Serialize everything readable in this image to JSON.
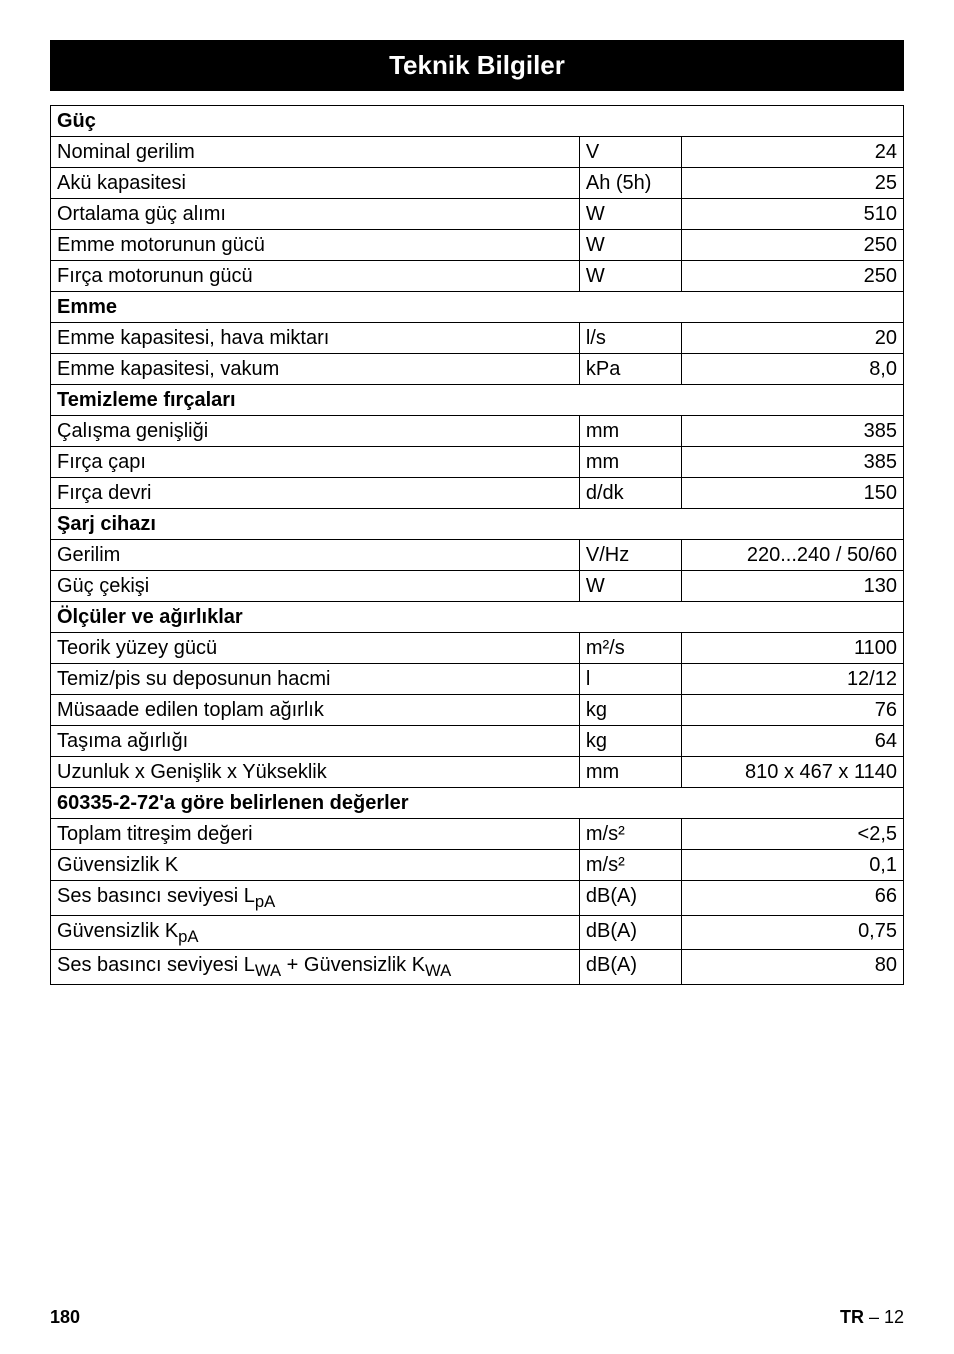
{
  "title": "Teknik Bilgiler",
  "sections": [
    {
      "header": "Güç",
      "rows": [
        {
          "label": "Nominal gerilim",
          "unit": "V",
          "value": "24"
        },
        {
          "label": "Akü kapasitesi",
          "unit": "Ah (5h)",
          "value": "25"
        },
        {
          "label": "Ortalama güç alımı",
          "unit": "W",
          "value": "510"
        },
        {
          "label": "Emme motorunun gücü",
          "unit": "W",
          "value": "250"
        },
        {
          "label": "Fırça motorunun gücü",
          "unit": "W",
          "value": "250"
        }
      ]
    },
    {
      "header": "Emme",
      "rows": [
        {
          "label": "Emme kapasitesi, hava miktarı",
          "unit": "l/s",
          "value": "20"
        },
        {
          "label": "Emme kapasitesi, vakum",
          "unit": "kPa",
          "value": "8,0"
        }
      ]
    },
    {
      "header": "Temizleme fırçaları",
      "rows": [
        {
          "label": "Çalışma genişliği",
          "unit": "mm",
          "value": "385"
        },
        {
          "label": "Fırça çapı",
          "unit": "mm",
          "value": "385"
        },
        {
          "label": "Fırça devri",
          "unit": "d/dk",
          "value": "150"
        }
      ]
    },
    {
      "header": "Şarj cihazı",
      "rows": [
        {
          "label": "Gerilim",
          "unit": "V/Hz",
          "value": "220...240 / 50/60"
        },
        {
          "label": "Güç çekişi",
          "unit": "W",
          "value": "130"
        }
      ]
    },
    {
      "header": "Ölçüler ve ağırlıklar",
      "rows": [
        {
          "label": "Teorik yüzey gücü",
          "unit": "m²/s",
          "value": "1100"
        },
        {
          "label": "Temiz/pis su deposunun hacmi",
          "unit": "l",
          "value": "12/12"
        },
        {
          "label": "Müsaade edilen toplam ağırlık",
          "unit": "kg",
          "value": "76"
        },
        {
          "label": "Taşıma ağırlığı",
          "unit": "kg",
          "value": "64"
        },
        {
          "label": "Uzunluk x Genişlik x Yükseklik",
          "unit": "mm",
          "value": "810 x 467 x 1140"
        }
      ]
    },
    {
      "header": "60335-2-72'a göre belirlenen değerler",
      "rows": [
        {
          "label": "Toplam titreşim değeri",
          "unit": "m/s²",
          "value": "<2,5"
        },
        {
          "label": "Güvensizlik K",
          "unit": "m/s²",
          "value": "0,1"
        },
        {
          "label": "Ses basıncı seviyesi L<sub>pA</sub>",
          "unit": "dB(A)",
          "value": "66",
          "html": true
        },
        {
          "label": "Güvensizlik K<sub>pA</sub>",
          "unit": "dB(A)",
          "value": "0,75",
          "html": true
        },
        {
          "label": "Ses basıncı seviyesi L<sub>WA</sub> + Güvensizlik K<sub>WA</sub>",
          "unit": "dB(A)",
          "value": "80",
          "html": true
        }
      ]
    }
  ],
  "footer": {
    "page": "180",
    "code_prefix": "TR",
    "code_suffix": " – 12"
  },
  "style": {
    "title_bg": "#000000",
    "title_color": "#ffffff",
    "border_color": "#000000",
    "font_family": "Arial, Helvetica, sans-serif",
    "base_fontsize": 20,
    "title_fontsize": 26
  }
}
